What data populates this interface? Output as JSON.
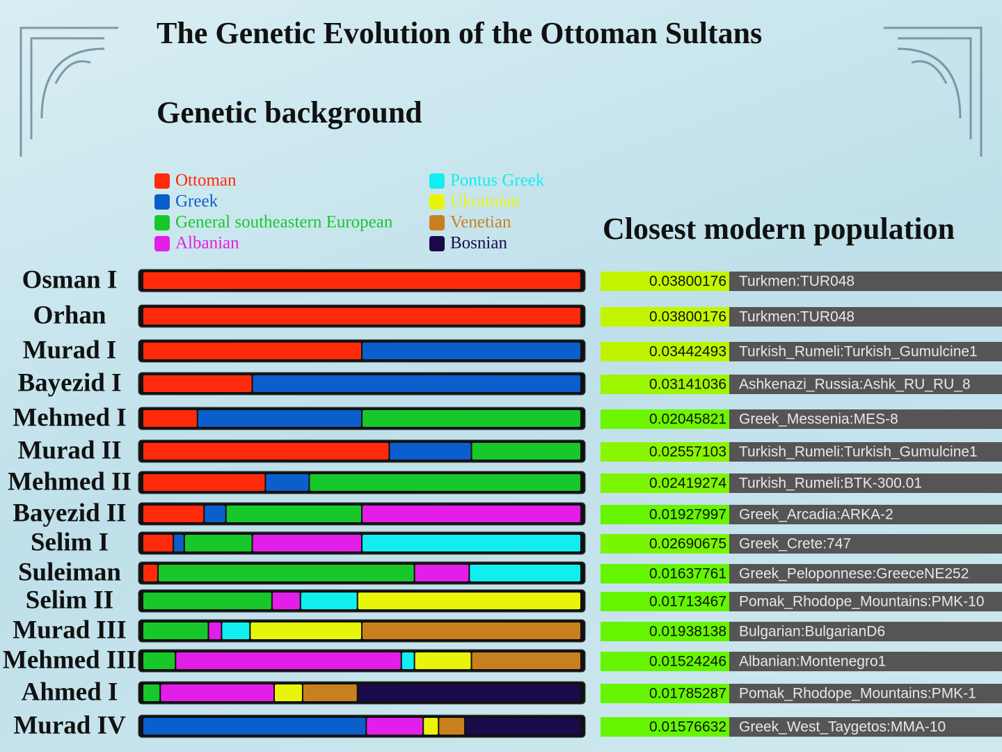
{
  "title": "The Genetic Evolution of the Ottoman Sultans",
  "chart_data": {
    "type": "stacked-bar",
    "orientation": "horizontal",
    "title": "Genetic background",
    "categories": [
      "Osman I",
      "Orhan",
      "Murad I",
      "Bayezid I",
      "Mehmed I",
      "Murad II",
      "Mehmed II",
      "Bayezid II",
      "Selim I",
      "Suleiman",
      "Selim II",
      "Murad III",
      "Mehmed III",
      "Ahmed I",
      "Murad IV"
    ],
    "xlim": [
      0,
      100
    ],
    "series": [
      {
        "name": "Ottoman",
        "color": "#ff2a0a",
        "values": [
          100,
          100,
          50,
          25,
          12.5,
          56.25,
          28,
          14,
          7,
          3.5,
          0,
          0,
          0,
          0,
          0
        ]
      },
      {
        "name": "Greek",
        "color": "#0a5fcc",
        "values": [
          0,
          0,
          50,
          75,
          37.5,
          18.75,
          10,
          5,
          2.5,
          0,
          0,
          0,
          0,
          0,
          51
        ]
      },
      {
        "name": "General southeastern European",
        "color": "#18c82a",
        "values": [
          0,
          0,
          0,
          0,
          50,
          25,
          62,
          31,
          15.5,
          58.5,
          29.5,
          15,
          7.5,
          4,
          0
        ]
      },
      {
        "name": "Albanian",
        "color": "#e21ee8",
        "values": [
          0,
          0,
          0,
          0,
          0,
          0,
          0,
          50,
          25,
          12.5,
          6.5,
          3,
          51.5,
          26,
          13
        ]
      },
      {
        "name": "Pontus Greek",
        "color": "#10eef0",
        "values": [
          0,
          0,
          0,
          0,
          0,
          0,
          0,
          0,
          50,
          25.5,
          13,
          6.5,
          3,
          0,
          0
        ]
      },
      {
        "name": "Ukrainian",
        "color": "#e8f50a",
        "values": [
          0,
          0,
          0,
          0,
          0,
          0,
          0,
          0,
          0,
          0,
          51,
          25.5,
          13,
          6.5,
          3.5
        ]
      },
      {
        "name": "Venetian",
        "color": "#c8801e",
        "values": [
          0,
          0,
          0,
          0,
          0,
          0,
          0,
          0,
          0,
          0,
          0,
          50,
          25,
          12.5,
          6
        ]
      },
      {
        "name": "Bosnian",
        "color": "#1a0a4a",
        "values": [
          0,
          0,
          0,
          0,
          0,
          0,
          0,
          0,
          0,
          0,
          0,
          0,
          0,
          51,
          26.5
        ]
      }
    ]
  },
  "closest": {
    "title": "Closest modern population",
    "cell_colors": [
      "#c4f500",
      "#c4f500",
      "#bdf500",
      "#9ef500",
      "#6ef500",
      "#8af500",
      "#7ef500",
      "#66f500",
      "#7af500",
      "#66f500",
      "#66f500",
      "#66f500",
      "#66f500",
      "#66f500",
      "#66f500"
    ],
    "rows": [
      [
        "0.03800176",
        "Turkmen:TUR048"
      ],
      [
        "0.03800176",
        "Turkmen:TUR048"
      ],
      [
        "0.03442493",
        "Turkish_Rumeli:Turkish_Gumulcine1"
      ],
      [
        "0.03141036",
        "Ashkenazi_Russia:Ashk_RU_RU_8"
      ],
      [
        "0.02045821",
        "Greek_Messenia:MES-8"
      ],
      [
        "0.02557103",
        "Turkish_Rumeli:Turkish_Gumulcine1"
      ],
      [
        "0.02419274",
        "Turkish_Rumeli:BTK-300.01"
      ],
      [
        "0.01927997",
        "Greek_Arcadia:ARKA-2"
      ],
      [
        "0.02690675",
        "Greek_Crete:747"
      ],
      [
        "0.01637761",
        "Greek_Peloponnese:GreeceNE252"
      ],
      [
        "0.01713467",
        "Pomak_Rhodope_Mountains:PMK-10"
      ],
      [
        "0.01938138",
        "Bulgarian:BulgarianD6"
      ],
      [
        "0.01524246",
        "Albanian:Montenegro1"
      ],
      [
        "0.01785287",
        "Pomak_Rhodope_Mountains:PMK-1"
      ],
      [
        "0.01576632",
        "Greek_West_Taygetos:MMA-10"
      ]
    ]
  }
}
